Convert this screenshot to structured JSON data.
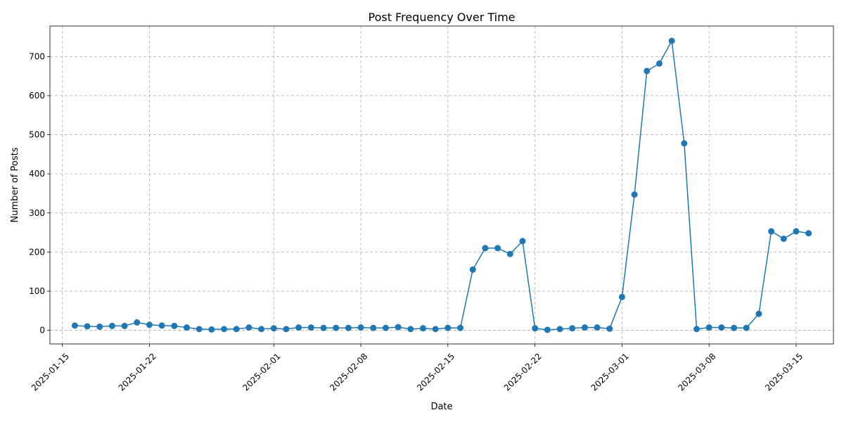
{
  "chart_data": {
    "type": "line",
    "title": "Post Frequency Over Time",
    "xlabel": "Date",
    "ylabel": "Number of Posts",
    "x_type": "date",
    "xlim": [
      "2025-01-14",
      "2025-03-18"
    ],
    "ylim": [
      -35,
      778
    ],
    "grid": true,
    "line_color": "#1f77b4",
    "x_ticks": [
      "2025-01-15",
      "2025-01-22",
      "2025-02-01",
      "2025-02-08",
      "2025-02-15",
      "2025-02-22",
      "2025-03-01",
      "2025-03-08",
      "2025-03-15"
    ],
    "y_ticks": [
      0,
      100,
      200,
      300,
      400,
      500,
      600,
      700
    ],
    "series": [
      {
        "x": [
          "2025-01-16",
          "2025-01-17",
          "2025-01-18",
          "2025-01-19",
          "2025-01-20",
          "2025-01-21",
          "2025-01-22",
          "2025-01-23",
          "2025-01-24",
          "2025-01-25",
          "2025-01-26",
          "2025-01-27",
          "2025-01-28",
          "2025-01-29",
          "2025-01-30",
          "2025-01-31",
          "2025-02-01",
          "2025-02-02",
          "2025-02-03",
          "2025-02-04",
          "2025-02-05",
          "2025-02-06",
          "2025-02-07",
          "2025-02-08",
          "2025-02-09",
          "2025-02-10",
          "2025-02-11",
          "2025-02-12",
          "2025-02-13",
          "2025-02-14",
          "2025-02-15",
          "2025-02-16",
          "2025-02-17",
          "2025-02-18",
          "2025-02-19",
          "2025-02-20",
          "2025-02-21",
          "2025-02-22",
          "2025-02-23",
          "2025-02-24",
          "2025-02-25",
          "2025-02-26",
          "2025-02-27",
          "2025-02-28",
          "2025-03-01",
          "2025-03-02",
          "2025-03-03",
          "2025-03-04",
          "2025-03-05",
          "2025-03-06",
          "2025-03-07",
          "2025-03-08",
          "2025-03-09",
          "2025-03-10",
          "2025-03-11",
          "2025-03-12",
          "2025-03-13",
          "2025-03-14",
          "2025-03-15",
          "2025-03-16"
        ],
        "values": [
          12,
          10,
          9,
          11,
          11,
          20,
          14,
          12,
          11,
          7,
          3,
          2,
          3,
          3,
          7,
          3,
          5,
          3,
          7,
          7,
          6,
          6,
          6,
          7,
          6,
          6,
          8,
          3,
          5,
          3,
          6,
          6,
          155,
          210,
          210,
          195,
          228,
          5,
          1,
          3,
          5,
          7,
          7,
          4,
          85,
          347,
          663,
          682,
          740,
          478,
          3,
          7,
          7,
          6,
          6,
          42,
          253,
          234,
          253,
          248
        ]
      }
    ]
  }
}
